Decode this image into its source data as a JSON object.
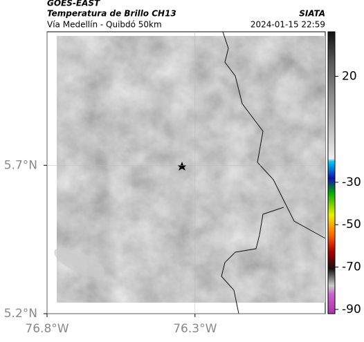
{
  "chart_data": {
    "type": "map",
    "title": "GOES-EAST",
    "subtitle": "Temperatura de Brillo CH13",
    "source": "SIATA",
    "region": "Vía Medellín - Quibdó 50km",
    "timestamp": "2024-01-15 22:59",
    "xlim": [
      -76.8,
      -75.86
    ],
    "ylim": [
      5.2,
      6.15
    ],
    "xticks": [
      {
        "value": -76.8,
        "label": "76.8°W"
      },
      {
        "value": -76.3,
        "label": "76.3°W"
      }
    ],
    "yticks": [
      {
        "value": 5.2,
        "label": "5.2°N"
      },
      {
        "value": 5.7,
        "label": "5.7°N"
      }
    ],
    "clim": [
      -92,
      41
    ],
    "cticks": [
      20,
      -30,
      -50,
      -70,
      -90
    ]
  }
}
